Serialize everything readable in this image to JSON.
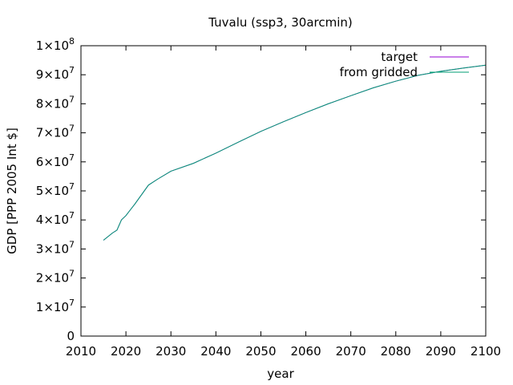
{
  "chart_data": {
    "type": "line",
    "title": "Tuvalu (ssp3, 30arcmin)",
    "xlabel": "year",
    "ylabel": "GDP [PPP 2005 Int $]",
    "xlim": [
      2010,
      2100
    ],
    "ylim": [
      0,
      100000000
    ],
    "x_ticks": [
      "2010",
      "2020",
      "2030",
      "2040",
      "2050",
      "2060",
      "2070",
      "2080",
      "2090",
      "2100"
    ],
    "y_ticks": [
      {
        "value": 0,
        "mantissa": "0",
        "exponent": ""
      },
      {
        "value": 10000000,
        "mantissa": "1×10",
        "exponent": "7"
      },
      {
        "value": 20000000,
        "mantissa": "2×10",
        "exponent": "7"
      },
      {
        "value": 30000000,
        "mantissa": "3×10",
        "exponent": "7"
      },
      {
        "value": 40000000,
        "mantissa": "4×10",
        "exponent": "7"
      },
      {
        "value": 50000000,
        "mantissa": "5×10",
        "exponent": "7"
      },
      {
        "value": 60000000,
        "mantissa": "6×10",
        "exponent": "7"
      },
      {
        "value": 70000000,
        "mantissa": "7×10",
        "exponent": "7"
      },
      {
        "value": 80000000,
        "mantissa": "8×10",
        "exponent": "7"
      },
      {
        "value": 90000000,
        "mantissa": "9×10",
        "exponent": "7"
      },
      {
        "value": 100000000,
        "mantissa": "1×10",
        "exponent": "8"
      }
    ],
    "grid": false,
    "legend_position": "top-right",
    "series": [
      {
        "name": "target",
        "color": "#9400d3",
        "x": [
          2015,
          2017,
          2018,
          2019,
          2020,
          2021,
          2022,
          2025,
          2027,
          2030,
          2035,
          2040,
          2045,
          2050,
          2055,
          2060,
          2065,
          2070,
          2075,
          2080,
          2085,
          2090,
          2095,
          2100
        ],
        "y": [
          33000000,
          35500000,
          36500000,
          40000000,
          41500000,
          43500000,
          45500000,
          52000000,
          54000000,
          56800000,
          59500000,
          63000000,
          66800000,
          70500000,
          73800000,
          77000000,
          80000000,
          82800000,
          85500000,
          87800000,
          89800000,
          91200000,
          92300000,
          93300000
        ]
      },
      {
        "name": "from gridded",
        "color": "#009e73",
        "x": [
          2015,
          2017,
          2018,
          2019,
          2020,
          2021,
          2022,
          2025,
          2027,
          2030,
          2035,
          2040,
          2045,
          2050,
          2055,
          2060,
          2065,
          2070,
          2075,
          2080,
          2085,
          2090,
          2095,
          2100
        ],
        "y": [
          33000000,
          35500000,
          36500000,
          40000000,
          41500000,
          43500000,
          45500000,
          52000000,
          54000000,
          56800000,
          59500000,
          63000000,
          66800000,
          70500000,
          73800000,
          77000000,
          80000000,
          82800000,
          85500000,
          87800000,
          89800000,
          91200000,
          92300000,
          93300000
        ]
      }
    ]
  }
}
